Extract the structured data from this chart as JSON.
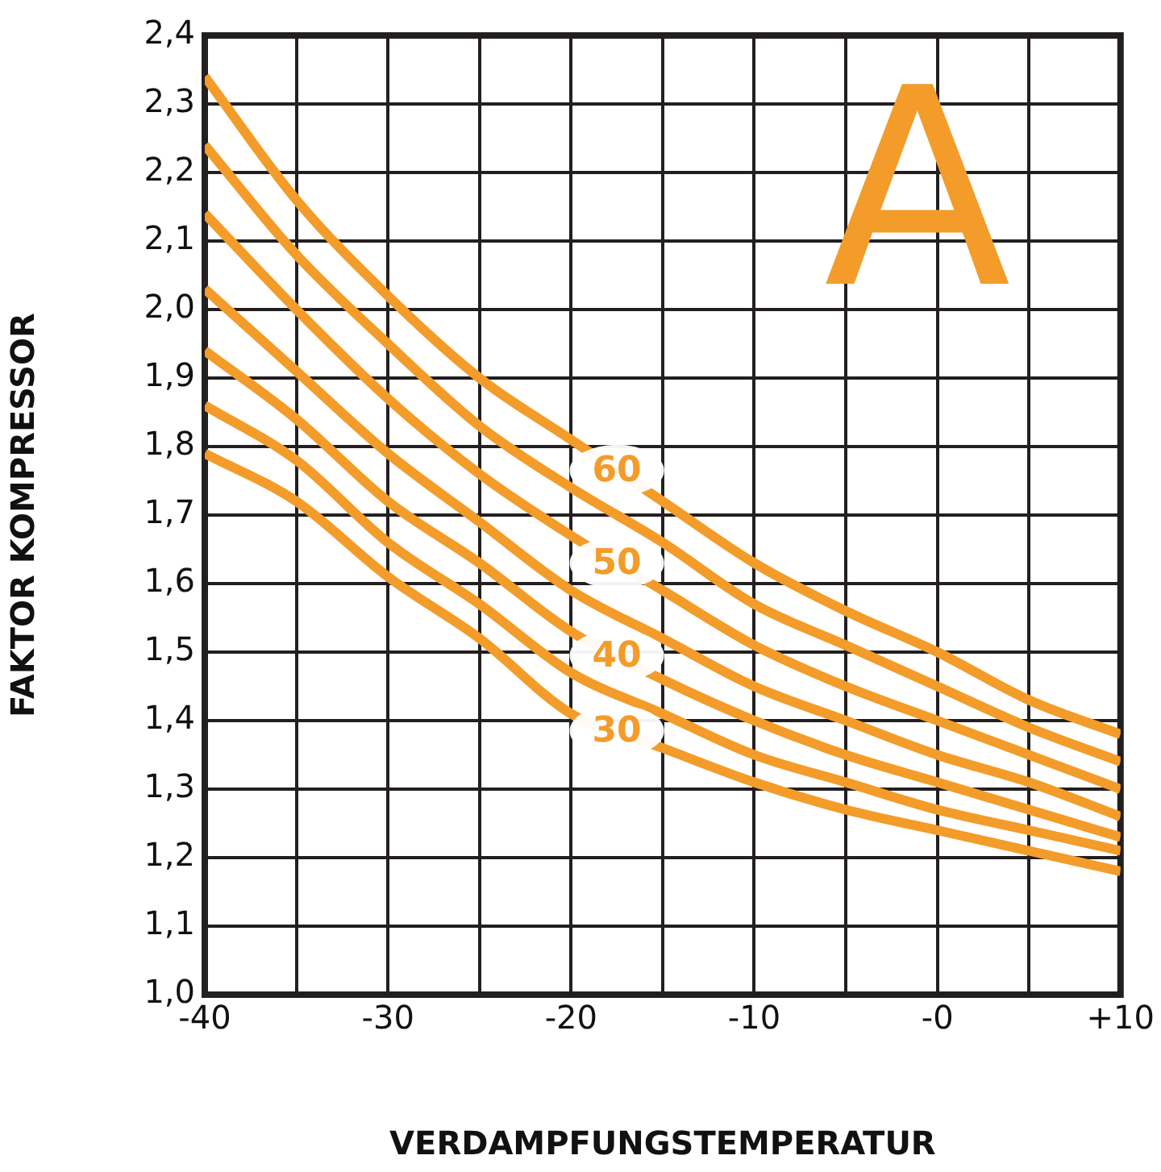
{
  "chart_data": {
    "type": "line",
    "xlabel": "VERDAMPFUNGSTEMPERATUR",
    "ylabel": "FAKTOR KOMPRESSOR",
    "annotations": [
      "A"
    ],
    "x": [
      -40,
      -35,
      -30,
      -25,
      -20,
      -15,
      -10,
      -5,
      0,
      5,
      10
    ],
    "xlim": [
      -40,
      10
    ],
    "ylim": [
      1.0,
      2.4
    ],
    "xticks": [
      -40,
      {
        "value": -35,
        "label": null
      },
      -30,
      {
        "value": -25,
        "label": null
      },
      -20,
      {
        "value": -15,
        "label": null
      },
      -10,
      {
        "value": -5,
        "label": null
      },
      {
        "value": 0,
        "label": "-0"
      },
      {
        "value": 5,
        "label": null
      },
      {
        "value": 10,
        "label": "+10"
      }
    ],
    "yticks": [
      {
        "value": 1.0,
        "label": "1,0"
      },
      {
        "value": 1.1,
        "label": "1,1"
      },
      {
        "value": 1.2,
        "label": "1,2"
      },
      {
        "value": 1.3,
        "label": "1,3"
      },
      {
        "value": 1.4,
        "label": "1,4"
      },
      {
        "value": 1.5,
        "label": "1,5"
      },
      {
        "value": 1.6,
        "label": "1,6"
      },
      {
        "value": 1.7,
        "label": "1,7"
      },
      {
        "value": 1.8,
        "label": "1,8"
      },
      {
        "value": 1.9,
        "label": "1,9"
      },
      {
        "value": 2.0,
        "label": "2,0"
      },
      {
        "value": 2.1,
        "label": "2,1"
      },
      {
        "value": 2.2,
        "label": "2,2"
      },
      {
        "value": 2.3,
        "label": "2,3"
      },
      {
        "value": 2.4,
        "label": "2,4"
      }
    ],
    "grid": true,
    "legend": false,
    "marker": "none",
    "line_style": "solid",
    "series": [
      {
        "name": "60",
        "color": "#f39c2a",
        "values": [
          2.34,
          2.16,
          2.02,
          1.9,
          1.81,
          1.72,
          1.63,
          1.56,
          1.5,
          1.43,
          1.38
        ]
      },
      {
        "color": "#f39c2a",
        "values": [
          2.24,
          2.08,
          1.95,
          1.83,
          1.74,
          1.66,
          1.57,
          1.51,
          1.45,
          1.39,
          1.34
        ]
      },
      {
        "name": "50",
        "color": "#f39c2a",
        "values": [
          2.14,
          2.0,
          1.87,
          1.76,
          1.67,
          1.59,
          1.51,
          1.45,
          1.4,
          1.35,
          1.3
        ]
      },
      {
        "color": "#f39c2a",
        "values": [
          2.03,
          1.91,
          1.79,
          1.69,
          1.59,
          1.52,
          1.45,
          1.4,
          1.35,
          1.31,
          1.26
        ]
      },
      {
        "name": "40",
        "color": "#f39c2a",
        "values": [
          1.94,
          1.84,
          1.72,
          1.63,
          1.53,
          1.46,
          1.4,
          1.35,
          1.31,
          1.27,
          1.23
        ]
      },
      {
        "color": "#f39c2a",
        "values": [
          1.86,
          1.78,
          1.66,
          1.57,
          1.47,
          1.41,
          1.35,
          1.31,
          1.27,
          1.24,
          1.21
        ]
      },
      {
        "name": "30",
        "color": "#f39c2a",
        "values": [
          1.79,
          1.72,
          1.61,
          1.52,
          1.41,
          1.36,
          1.31,
          1.27,
          1.24,
          1.21,
          1.18
        ]
      }
    ]
  }
}
